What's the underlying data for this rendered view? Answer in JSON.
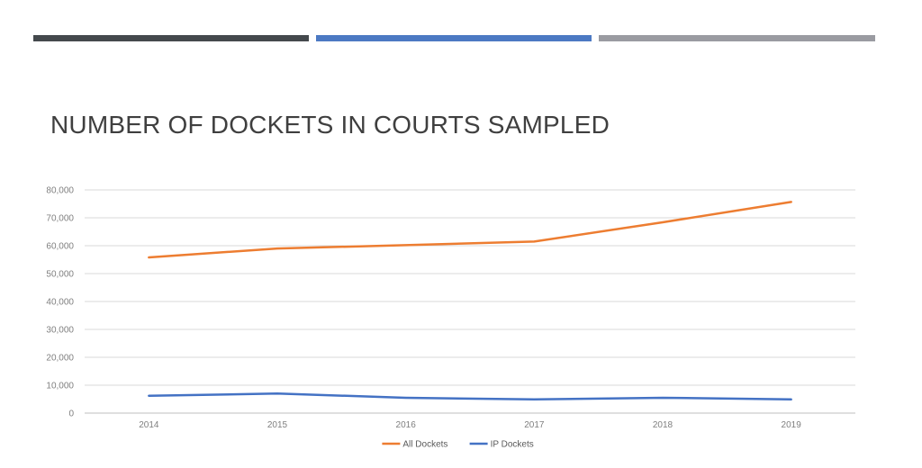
{
  "slide": {
    "title": "NUMBER OF DOCKETS IN COURTS SAMPLED",
    "bars": [
      {
        "color": "#44494d"
      },
      {
        "color": "#4c79c3"
      },
      {
        "color": "#9a9ba1"
      }
    ]
  },
  "chart_data": {
    "type": "line",
    "title": "NUMBER OF DOCKETS IN COURTS SAMPLED",
    "x": [
      "2014",
      "2015",
      "2016",
      "2017",
      "2018",
      "2019"
    ],
    "series": [
      {
        "name": "All Dockets",
        "color": "#ed7d31",
        "values": [
          55800,
          59000,
          60200,
          61500,
          68400,
          75700
        ]
      },
      {
        "name": "IP Dockets",
        "color": "#4472c4",
        "values": [
          6200,
          7000,
          5500,
          4900,
          5500,
          4900
        ]
      }
    ],
    "ylim": [
      0,
      80000
    ],
    "yticks": [
      "0",
      "10,000",
      "20,000",
      "30,000",
      "40,000",
      "50,000",
      "60,000",
      "70,000",
      "80,000"
    ],
    "grid": true,
    "legend_position": "bottom",
    "xlabel": "",
    "ylabel": ""
  }
}
